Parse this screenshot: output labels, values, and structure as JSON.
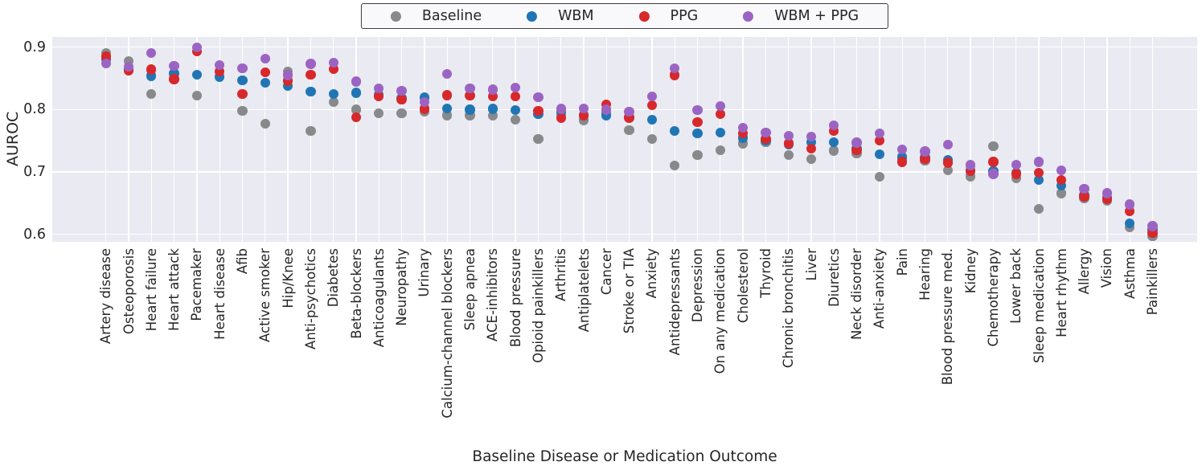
{
  "chart_data": {
    "type": "scatter",
    "title": "",
    "xlabel": "Baseline Disease or Medication Outcome",
    "ylabel": "AUROC",
    "yticks": [
      0.9,
      0.8,
      0.7,
      0.6
    ],
    "ylim": [
      0.588,
      0.9164
    ],
    "grid": true,
    "legend_position": "top center",
    "plot_background": "#eaeaf2",
    "gridline_color": "#ffffff",
    "categories": [
      "Artery disease",
      "Osteoporosis",
      "Heart failure",
      "Heart attack",
      "Pacemaker",
      "Heart disease",
      "Afib",
      "Active smoker",
      "Hip/Knee",
      "Anti-psychotics",
      "Diabetes",
      "Beta-blockers",
      "Anticoagulants",
      "Neuropathy",
      "Urinary",
      "Calcium-channel blockers",
      "Sleep apnea",
      "ACE-inhibitors",
      "Blood pressure",
      "Opioid painkillers",
      "Arthritis",
      "Antiplatelets",
      "Cancer",
      "Stroke or TIA",
      "Anxiety",
      "Antidepressants",
      "Depression",
      "On any medication",
      "Cholesterol",
      "Thyroid",
      "Chronic bronchitis",
      "Liver",
      "Diuretics",
      "Neck disorder",
      "Anti-anxiety",
      "Pain",
      "Hearing",
      "Blood pressure med.",
      "Kidney",
      "Chemotherapy",
      "Lower back",
      "Sleep medication",
      "Heart rhythm",
      "Allergy",
      "Vision",
      "Asthma",
      "Painkillers"
    ],
    "series": [
      {
        "name": "Baseline",
        "color": "#87898b",
        "values": [
          0.891,
          0.878,
          0.825,
          0.849,
          0.822,
          0.853,
          0.798,
          0.777,
          0.861,
          0.766,
          0.812,
          0.8,
          0.794,
          0.794,
          0.797,
          0.791,
          0.791,
          0.79,
          0.784,
          0.753,
          0.79,
          0.783,
          0.795,
          0.767,
          0.753,
          0.71,
          0.727,
          0.735,
          0.746,
          0.748,
          0.727,
          0.721,
          0.734,
          0.73,
          0.692,
          0.721,
          0.718,
          0.703,
          0.693,
          0.741,
          0.69,
          0.641,
          0.666,
          0.658,
          0.654,
          0.611,
          0.597
        ]
      },
      {
        "name": "WBM",
        "color": "#2076b4",
        "values": [
          0.88,
          0.864,
          0.854,
          0.858,
          0.856,
          0.852,
          0.847,
          0.843,
          0.838,
          0.829,
          0.825,
          0.827,
          0.823,
          0.818,
          0.819,
          0.802,
          0.8,
          0.801,
          0.799,
          0.793,
          0.796,
          0.791,
          0.791,
          0.788,
          0.784,
          0.766,
          0.762,
          0.763,
          0.755,
          0.751,
          0.744,
          0.748,
          0.748,
          0.737,
          0.728,
          0.724,
          0.723,
          0.719,
          0.702,
          0.701,
          0.699,
          0.687,
          0.678,
          0.663,
          0.658,
          0.618,
          0.607
        ]
      },
      {
        "name": "PPG",
        "color": "#d7282b",
        "values": [
          0.885,
          0.862,
          0.864,
          0.849,
          0.893,
          0.861,
          0.825,
          0.86,
          0.846,
          0.856,
          0.865,
          0.788,
          0.821,
          0.816,
          0.801,
          0.823,
          0.822,
          0.821,
          0.821,
          0.798,
          0.786,
          0.79,
          0.808,
          0.787,
          0.807,
          0.855,
          0.78,
          0.793,
          0.762,
          0.753,
          0.746,
          0.737,
          0.766,
          0.735,
          0.75,
          0.716,
          0.721,
          0.715,
          0.701,
          0.716,
          0.697,
          0.699,
          0.687,
          0.661,
          0.656,
          0.637,
          0.602
        ]
      },
      {
        "name": "WBM + PPG",
        "color": "#9b64c3",
        "values": [
          0.874,
          0.869,
          0.891,
          0.87,
          0.9,
          0.871,
          0.866,
          0.882,
          0.855,
          0.873,
          0.875,
          0.845,
          0.834,
          0.83,
          0.812,
          0.857,
          0.834,
          0.832,
          0.835,
          0.82,
          0.801,
          0.802,
          0.8,
          0.797,
          0.821,
          0.866,
          0.799,
          0.806,
          0.771,
          0.763,
          0.758,
          0.757,
          0.775,
          0.747,
          0.762,
          0.736,
          0.733,
          0.744,
          0.711,
          0.697,
          0.712,
          0.716,
          0.703,
          0.673,
          0.666,
          0.648,
          0.613
        ]
      }
    ]
  }
}
